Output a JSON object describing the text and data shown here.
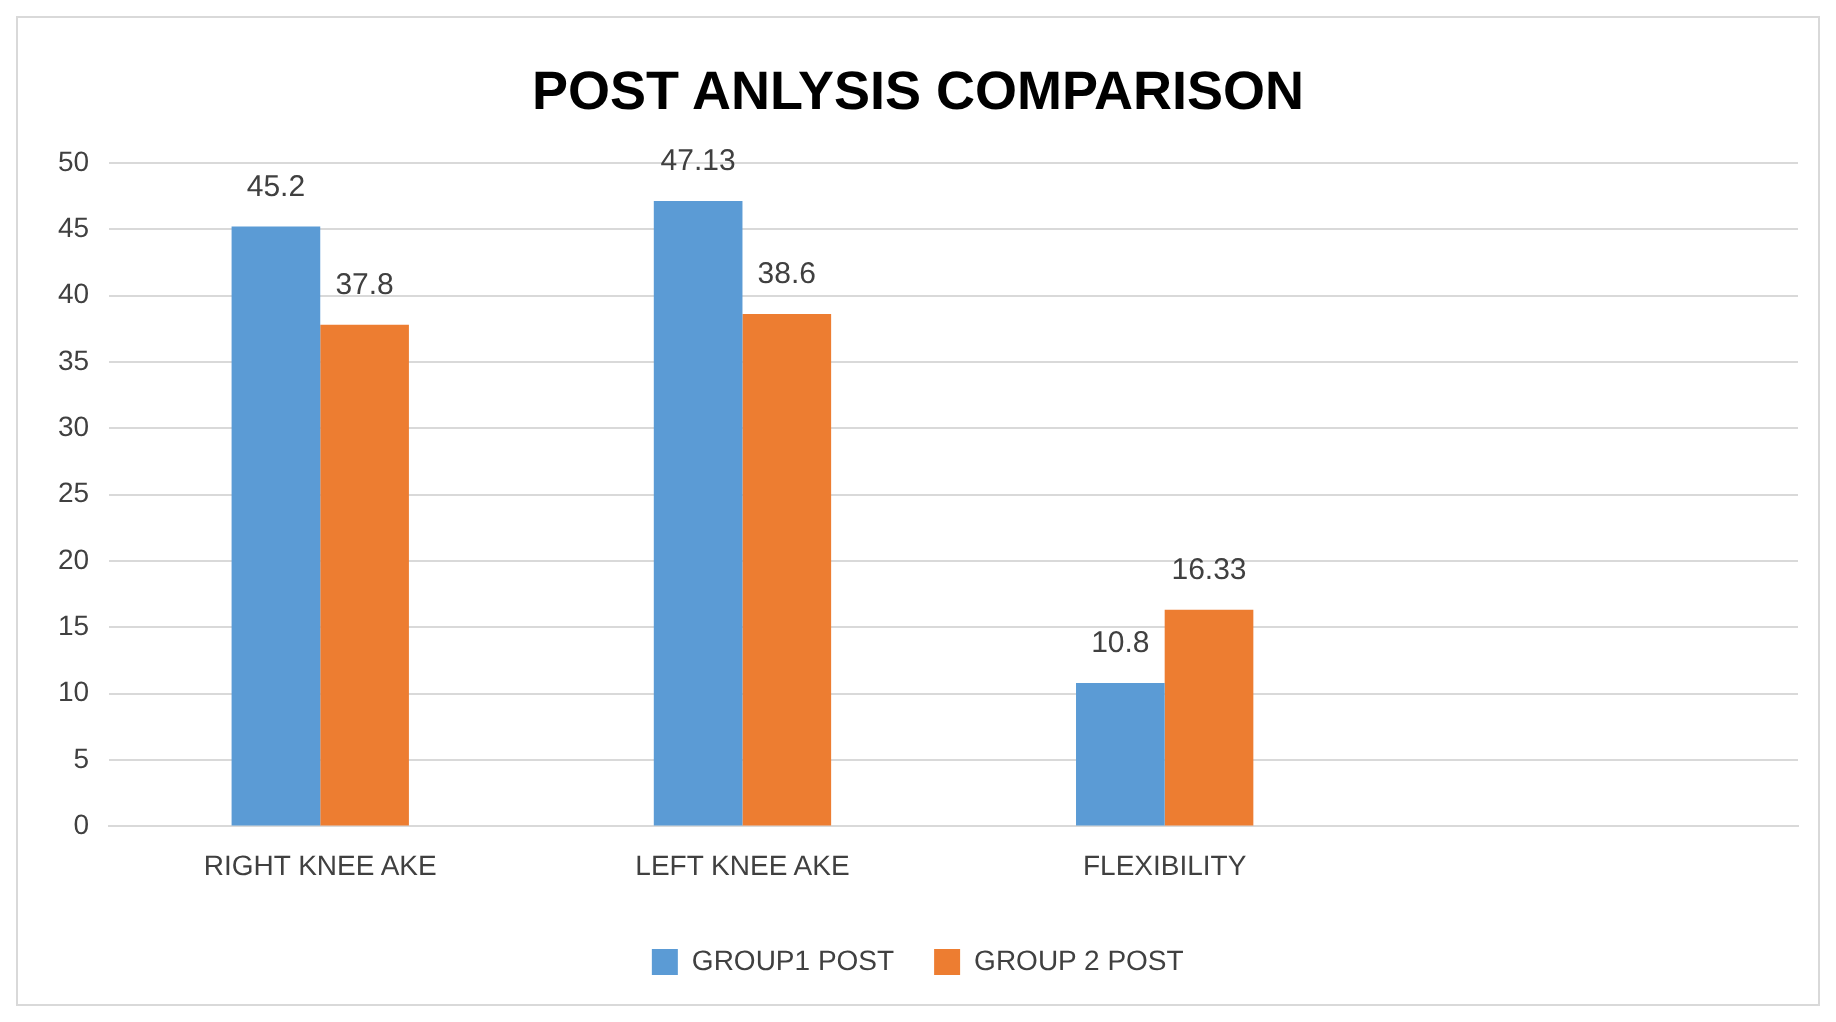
{
  "chart_data": {
    "type": "bar",
    "title": "POST ANLYSIS COMPARISON",
    "categories": [
      "RIGHT KNEE AKE",
      "LEFT KNEE AKE",
      "FLEXIBILITY",
      null
    ],
    "series": [
      {
        "name": "GROUP1 POST",
        "color": "#5b9bd5",
        "values": [
          45.2,
          47.13,
          10.8,
          null
        ]
      },
      {
        "name": "GROUP 2 POST",
        "color": "#ed7d31",
        "values": [
          37.8,
          38.6,
          16.33,
          null
        ]
      }
    ],
    "ylim": [
      0,
      50
    ],
    "yticks": [
      0,
      5,
      10,
      15,
      20,
      25,
      30,
      35,
      40,
      45,
      50
    ],
    "grid": "y",
    "legend": "bottom",
    "data_labels": true
  }
}
